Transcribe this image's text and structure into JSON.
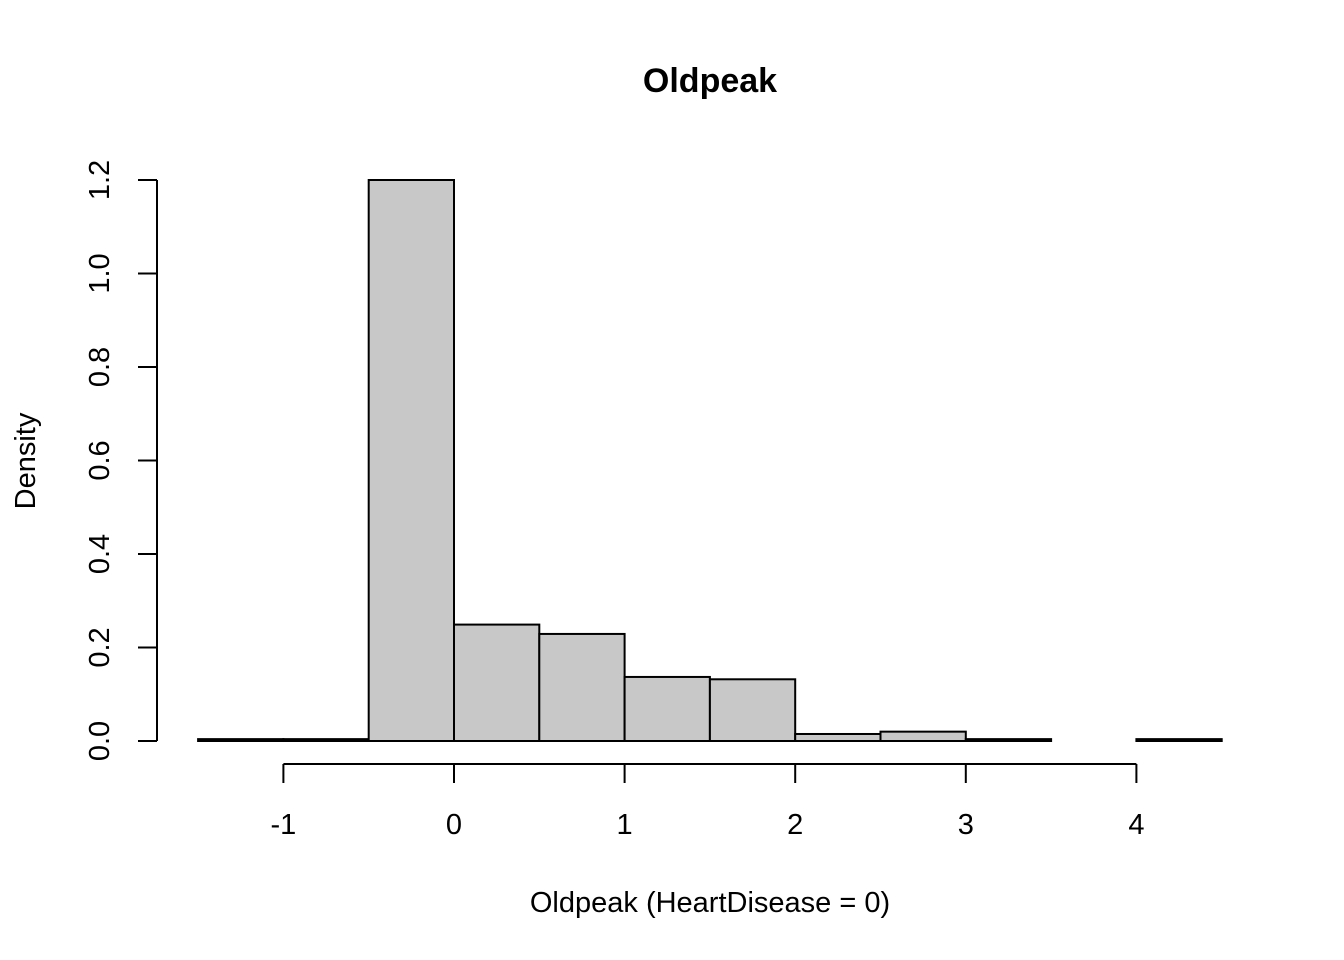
{
  "chart_data": {
    "type": "bar",
    "subtype": "histogram",
    "title": "Oldpeak",
    "xlabel": "Oldpeak (HeartDisease = 0)",
    "ylabel": "Density",
    "bin_width": 0.5,
    "bins": [
      {
        "start": -1.5,
        "end": -1.0,
        "density": 0.004
      },
      {
        "start": -1.0,
        "end": -0.5,
        "density": 0.004
      },
      {
        "start": -0.5,
        "end": 0.0,
        "density": 1.2
      },
      {
        "start": 0.0,
        "end": 0.5,
        "density": 0.249
      },
      {
        "start": 0.5,
        "end": 1.0,
        "density": 0.229
      },
      {
        "start": 1.0,
        "end": 1.5,
        "density": 0.137
      },
      {
        "start": 1.5,
        "end": 2.0,
        "density": 0.132
      },
      {
        "start": 2.0,
        "end": 2.5,
        "density": 0.015
      },
      {
        "start": 2.5,
        "end": 3.0,
        "density": 0.02
      },
      {
        "start": 3.0,
        "end": 3.5,
        "density": 0.004
      },
      {
        "start": 3.5,
        "end": 4.0,
        "density": 0.0
      },
      {
        "start": 4.0,
        "end": 4.5,
        "density": 0.004
      }
    ],
    "xticks": [
      -1,
      0,
      1,
      2,
      3,
      4
    ],
    "xtick_labels": [
      "-1",
      "0",
      "1",
      "2",
      "3",
      "4"
    ],
    "yticks": [
      0.0,
      0.2,
      0.4,
      0.6,
      0.8,
      1.0,
      1.2
    ],
    "ytick_labels": [
      "0.0",
      "0.2",
      "0.4",
      "0.6",
      "0.8",
      "1.0",
      "1.2"
    ],
    "xlim": [
      -1.5,
      4.5
    ],
    "ylim": [
      0,
      1.2
    ],
    "grid": false,
    "legend": "none",
    "colors": {
      "bar_fill": "#c8c8c8",
      "bar_stroke": "#000000"
    }
  }
}
